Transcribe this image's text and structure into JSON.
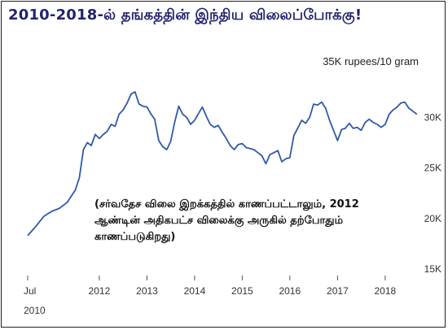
{
  "title": "2010-2018-ல் தங்கத்தின் இந்திய விலைப்போக்கு!",
  "note_lines": [
    "(சர்வதேச விலை இறக்கத்தில் காணப்பட்டாலும், 2012",
    "ஆண்டின் அதிகபட்ச  விலைக்கு அருகில் தற்போதும்",
    "காணப்படுகிறது)"
  ],
  "colors": {
    "line": "#2f5aa8",
    "title": "#23236e"
  },
  "chart_data": {
    "type": "line",
    "title": "2010-2018-ல் தங்கத்தின் இந்திய விலைப்போக்கு!",
    "unit_label": "35K rupees/10 gram",
    "y_ticks": [
      "30K",
      "25K",
      "20K",
      "15K"
    ],
    "y_tick_values": [
      30000,
      25000,
      20000,
      15000
    ],
    "x_ticks": [
      "Jul\n2010",
      "2012",
      "2013",
      "2014",
      "2015",
      "2016",
      "2017",
      "2018"
    ],
    "x_tick_dates": [
      "2010-07-01",
      "2012-01-01",
      "2013-01-01",
      "2014-01-01",
      "2015-01-01",
      "2016-01-01",
      "2017-01-01",
      "2018-01-01"
    ],
    "ylim": [
      15000,
      35000
    ],
    "xlim": [
      "2010-07-01",
      "2018-09-15"
    ],
    "grid": false,
    "series": [
      {
        "x": [
          "2010-07-01",
          "2010-09-01",
          "2010-11-01",
          "2011-01-01",
          "2011-03-01",
          "2011-05-01",
          "2011-07-01",
          "2011-08-01",
          "2011-09-01",
          "2011-10-01",
          "2011-11-01",
          "2011-12-01",
          "2012-01-01",
          "2012-02-01",
          "2012-03-01",
          "2012-04-01",
          "2012-05-01",
          "2012-06-01",
          "2012-07-01",
          "2012-08-01",
          "2012-09-01",
          "2012-10-01",
          "2012-11-01",
          "2012-12-01",
          "2013-01-01",
          "2013-02-01",
          "2013-03-01",
          "2013-04-01",
          "2013-05-01",
          "2013-06-01",
          "2013-07-01",
          "2013-08-01",
          "2013-09-01",
          "2013-10-01",
          "2013-11-01",
          "2013-12-01",
          "2014-01-01",
          "2014-02-01",
          "2014-03-01",
          "2014-04-01",
          "2014-05-01",
          "2014-06-01",
          "2014-07-01",
          "2014-08-01",
          "2014-09-01",
          "2014-10-01",
          "2014-11-01",
          "2014-12-01",
          "2015-01-01",
          "2015-02-01",
          "2015-03-01",
          "2015-04-01",
          "2015-05-01",
          "2015-06-01",
          "2015-07-01",
          "2015-08-01",
          "2015-09-01",
          "2015-10-01",
          "2015-11-01",
          "2015-12-01",
          "2016-01-01",
          "2016-02-01",
          "2016-03-01",
          "2016-04-01",
          "2016-05-01",
          "2016-06-01",
          "2016-07-01",
          "2016-08-01",
          "2016-09-01",
          "2016-10-01",
          "2016-11-01",
          "2016-12-01",
          "2017-01-01",
          "2017-02-01",
          "2017-03-01",
          "2017-04-01",
          "2017-05-01",
          "2017-06-01",
          "2017-07-01",
          "2017-08-01",
          "2017-09-01",
          "2017-10-01",
          "2017-11-01",
          "2017-12-01",
          "2018-01-01",
          "2018-02-01",
          "2018-03-01",
          "2018-04-01",
          "2018-05-01",
          "2018-06-01",
          "2018-07-01",
          "2018-08-01",
          "2018-09-01"
        ],
        "y": [
          18300,
          19200,
          20200,
          20700,
          21000,
          21600,
          22800,
          24000,
          26800,
          27500,
          27200,
          28300,
          27900,
          28300,
          28600,
          29300,
          29100,
          30300,
          30700,
          31400,
          32300,
          32500,
          31300,
          31100,
          31000,
          30300,
          29800,
          27700,
          27100,
          26800,
          27600,
          29500,
          31100,
          30300,
          30000,
          29300,
          29700,
          30400,
          31000,
          30100,
          29300,
          29000,
          29200,
          28500,
          27900,
          27200,
          26800,
          27300,
          27400,
          27000,
          26900,
          26800,
          26500,
          26200,
          25400,
          26300,
          26500,
          26700,
          25600,
          25900,
          26000,
          28200,
          28900,
          29700,
          29400,
          30000,
          31300,
          31200,
          31500,
          30900,
          29700,
          28700,
          27700,
          28800,
          28900,
          29400,
          28900,
          29000,
          28700,
          29500,
          29800,
          29500,
          29300,
          29000,
          29300,
          30300,
          30700,
          31000,
          31400,
          31500,
          30900,
          30600,
          30300
        ]
      }
    ]
  }
}
